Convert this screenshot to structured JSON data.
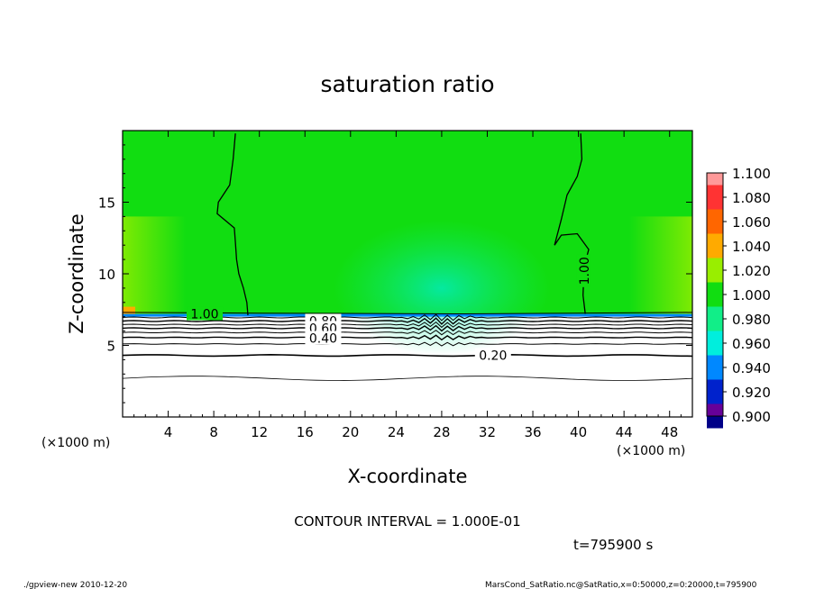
{
  "chart_data": {
    "type": "heatmap",
    "title": "saturation ratio",
    "xlabel": "X-coordinate",
    "ylabel": "Z-coordinate",
    "x_unit": "(×1000 m)",
    "xlim": [
      0,
      50
    ],
    "ylim": [
      0,
      20
    ],
    "x_ticks": [
      4,
      8,
      12,
      16,
      20,
      24,
      28,
      32,
      36,
      40,
      44,
      48
    ],
    "y_ticks": [
      5,
      10,
      15
    ],
    "colorbar": {
      "levels": [
        "1.100",
        "1.080",
        "1.060",
        "1.040",
        "1.020",
        "1.000",
        "0.980",
        "0.960",
        "0.940",
        "0.920",
        "0.900"
      ],
      "colors": [
        "#ff9999",
        "#ff3333",
        "#ff6600",
        "#ffaa00",
        "#99ee00",
        "#11dd11",
        "#11ee88",
        "#00eedd",
        "#0088ff",
        "#0022cc",
        "#000088",
        "#660099"
      ]
    },
    "fill": {
      "upper_color": "#11dd11",
      "lower_color": "#ffffff",
      "layer_top_z": 7.1
    },
    "contour_labels": [
      {
        "text": "1.00",
        "x": 7.2,
        "z": 7.2
      },
      {
        "text": "0.80",
        "x": 17.6,
        "z": 6.7
      },
      {
        "text": "0.60",
        "x": 17.6,
        "z": 6.2
      },
      {
        "text": "0.40",
        "x": 17.6,
        "z": 5.5
      },
      {
        "text": "0.20",
        "x": 32.5,
        "z": 4.3
      },
      {
        "text": "1.00",
        "x": 40.5,
        "z": 10.2
      }
    ],
    "contour_interval": "CONTOUR INTERVAL = 1.000E-01",
    "time_label": "t=795900 s"
  },
  "footer": {
    "left": "./gpview-new  2010-12-20",
    "right": "MarsCond_SatRatio.nc@SatRatio,x=0:50000,z=0:20000,t=795900"
  }
}
